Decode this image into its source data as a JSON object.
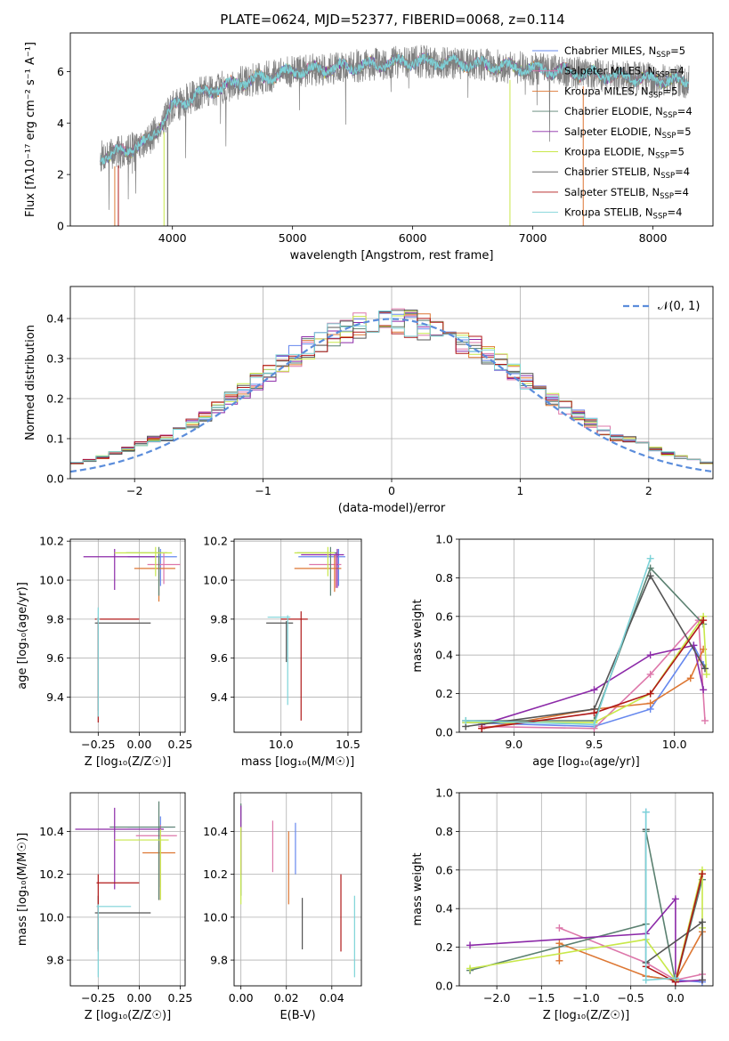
{
  "figure_title": "PLATE=0624, MJD=52377, FIBERID=0068, z=0.114",
  "colors": [
    "#6688ee",
    "#dd77aa",
    "#dd7733",
    "#5a8070",
    "#8c2aa8",
    "#c8e84a",
    "#555555",
    "#b01818",
    "#7dd3d8"
  ],
  "chart_data": [
    {
      "id": "spectrum",
      "type": "line",
      "title": "PLATE=0624, MJD=52377, FIBERID=0068, z=0.114",
      "xlabel": "wavelength [Angstrom, rest frame]",
      "ylabel": "Flux [fλ10⁻¹⁷ erg cm⁻² s⁻¹ A⁻¹]",
      "xlim": [
        3150,
        8500
      ],
      "ylim": [
        0,
        7.5
      ],
      "xticks": [
        4000,
        5000,
        6000,
        7000,
        8000
      ],
      "yticks": [
        0,
        2,
        4,
        6
      ],
      "data_x_range": [
        3400,
        8300
      ],
      "continuum": [
        [
          3400,
          2.7
        ],
        [
          3600,
          2.9
        ],
        [
          3800,
          3.3
        ],
        [
          4000,
          4.6
        ],
        [
          4200,
          5.1
        ],
        [
          4500,
          5.5
        ],
        [
          5000,
          6.0
        ],
        [
          5500,
          6.2
        ],
        [
          6000,
          6.4
        ],
        [
          6500,
          6.3
        ],
        [
          7000,
          6.1
        ],
        [
          7500,
          5.9
        ],
        [
          8000,
          5.7
        ],
        [
          8300,
          5.6
        ]
      ],
      "legend": [
        "Chabrier MILES, N_SSP=5",
        "Salpeter MILES, N_SSP=4",
        "Kroupa MILES, N_SSP=5",
        "Chabrier ELODIE, N_SSP=4",
        "Salpeter ELODIE, N_SSP=5",
        "Kroupa ELODIE, N_SSP=5",
        "Chabrier STELIB, N_SSP=4",
        "Salpeter STELIB, N_SSP=4",
        "Kroupa STELIB, N_SSP=4"
      ]
    },
    {
      "id": "residuals",
      "type": "line",
      "xlabel": "(data-model)/error",
      "ylabel": "Normed distribution",
      "xlim": [
        -2.5,
        2.5
      ],
      "ylim": [
        0,
        0.48
      ],
      "xticks": [
        -2,
        -1,
        0,
        1,
        2
      ],
      "yticks": [
        0.0,
        0.1,
        0.2,
        0.3,
        0.4
      ],
      "grid": true,
      "legend": [
        "𝒩(0, 1)"
      ],
      "bin_width": 0.1
    },
    {
      "id": "age_vs_Z",
      "type": "scatter",
      "xlabel": "Z [log₁₀(Z/Z☉)]",
      "ylabel": "age  [log₁₀(age/yr)]",
      "xlim": [
        -0.42,
        0.28
      ],
      "ylim": [
        9.22,
        10.21
      ],
      "xticks": [
        -0.25,
        0.0,
        0.25
      ],
      "yticks": [
        9.4,
        9.6,
        9.8,
        10.0,
        10.2
      ],
      "grid": true,
      "errorbars": [
        {
          "x": 0.13,
          "y": 10.12,
          "xerr": [
            0.2,
            0.1
          ],
          "yerr": [
            0.15,
            0.04
          ],
          "c": 0
        },
        {
          "x": 0.15,
          "y": 10.08,
          "xerr": [
            0.1,
            0.1
          ],
          "yerr": [
            0.1,
            0.06
          ],
          "c": 1
        },
        {
          "x": 0.12,
          "y": 10.06,
          "xerr": [
            0.15,
            0.1
          ],
          "yerr": [
            0.17,
            0.06
          ],
          "c": 2
        },
        {
          "x": 0.12,
          "y": 10.14,
          "xerr": [
            0.2,
            0.05
          ],
          "yerr": [
            0.22,
            0.03
          ],
          "c": 3
        },
        {
          "x": -0.15,
          "y": 10.12,
          "xerr": [
            0.19,
            0.26
          ],
          "yerr": [
            0.17,
            0.04
          ],
          "c": 4
        },
        {
          "x": 0.1,
          "y": 10.14,
          "xerr": [
            0.25,
            0.1
          ],
          "yerr": [
            0.12,
            0.03
          ],
          "c": 5
        },
        {
          "x": -0.25,
          "y": 9.78,
          "xerr": [
            0.02,
            0.32
          ],
          "yerr": [
            0.45,
            0.01
          ],
          "c": 6
        },
        {
          "x": -0.25,
          "y": 9.8,
          "xerr": [
            0.02,
            0.25
          ],
          "yerr": [
            0.53,
            0.01
          ],
          "c": 7
        },
        {
          "x": -0.25,
          "y": 9.8,
          "xerr": [
            0.01,
            0.01
          ],
          "yerr": [
            0.5,
            0.06
          ],
          "c": 8
        }
      ]
    },
    {
      "id": "age_vs_mass",
      "type": "scatter",
      "xlabel": "mass [log₁₀(M/M☉)]",
      "xlim": [
        9.65,
        10.6
      ],
      "ylim": [
        9.22,
        10.21
      ],
      "xticks": [
        10.0,
        10.5
      ],
      "yticks": [
        9.4,
        9.6,
        9.8,
        10.0,
        10.2
      ],
      "grid": true,
      "errorbars": [
        {
          "x": 10.43,
          "y": 10.12,
          "xerr": [
            0.3,
            0.05
          ],
          "yerr": [
            0.15,
            0.04
          ],
          "c": 0
        },
        {
          "x": 10.41,
          "y": 10.08,
          "xerr": [
            0.2,
            0.04
          ],
          "yerr": [
            0.12,
            0.06
          ],
          "c": 1
        },
        {
          "x": 10.4,
          "y": 10.06,
          "xerr": [
            0.3,
            0.05
          ],
          "yerr": [
            0.12,
            0.07
          ],
          "c": 2
        },
        {
          "x": 10.37,
          "y": 10.14,
          "xerr": [
            0.25,
            0.05
          ],
          "yerr": [
            0.22,
            0.03
          ],
          "c": 3
        },
        {
          "x": 10.42,
          "y": 10.13,
          "xerr": [
            0.27,
            0.05
          ],
          "yerr": [
            0.17,
            0.03
          ],
          "c": 4
        },
        {
          "x": 10.35,
          "y": 10.14,
          "xerr": [
            0.25,
            0.05
          ],
          "yerr": [
            0.12,
            0.03
          ],
          "c": 5
        },
        {
          "x": 10.04,
          "y": 9.78,
          "xerr": [
            0.15,
            0.05
          ],
          "yerr": [
            0.2,
            0.01
          ],
          "c": 6
        },
        {
          "x": 10.15,
          "y": 9.8,
          "xerr": [
            0.15,
            0.05
          ],
          "yerr": [
            0.52,
            0.04
          ],
          "c": 7
        },
        {
          "x": 10.05,
          "y": 9.81,
          "xerr": [
            0.15,
            0.02
          ],
          "yerr": [
            0.45,
            0.01
          ],
          "c": 8
        }
      ]
    },
    {
      "id": "weight_vs_age",
      "type": "line",
      "xlabel": "age  [log₁₀(age/yr)]",
      "ylabel": "mass weight",
      "xlim": [
        8.66,
        10.24
      ],
      "ylim": [
        0,
        1.0
      ],
      "xticks": [
        9.0,
        9.5,
        10.0
      ],
      "yticks": [
        0.0,
        0.2,
        0.4,
        0.6,
        0.8,
        1.0
      ],
      "grid": true,
      "series": [
        {
          "c": 0,
          "x": [
            8.7,
            9.5,
            9.85,
            10.12,
            10.18
          ],
          "y": [
            0.05,
            0.03,
            0.12,
            0.45,
            0.35
          ]
        },
        {
          "c": 1,
          "x": [
            8.8,
            9.5,
            9.85,
            10.15,
            10.19
          ],
          "y": [
            0.03,
            0.02,
            0.3,
            0.58,
            0.06
          ]
        },
        {
          "c": 2,
          "x": [
            8.8,
            9.5,
            9.85,
            10.1,
            10.18
          ],
          "y": [
            0.02,
            0.12,
            0.15,
            0.28,
            0.43
          ]
        },
        {
          "c": 3,
          "x": [
            8.7,
            9.5,
            9.85,
            10.18
          ],
          "y": [
            0.06,
            0.06,
            0.85,
            0.56
          ]
        },
        {
          "c": 4,
          "x": [
            8.8,
            9.5,
            9.85,
            10.12,
            10.18
          ],
          "y": [
            0.04,
            0.22,
            0.4,
            0.45,
            0.22
          ]
        },
        {
          "c": 5,
          "x": [
            8.7,
            9.5,
            9.85,
            10.18,
            10.2
          ],
          "y": [
            0.05,
            0.05,
            0.2,
            0.6,
            0.3
          ]
        },
        {
          "c": 6,
          "x": [
            8.7,
            9.5,
            9.85,
            10.19
          ],
          "y": [
            0.03,
            0.12,
            0.81,
            0.33
          ]
        },
        {
          "c": 7,
          "x": [
            8.8,
            9.5,
            9.85,
            10.18
          ],
          "y": [
            0.02,
            0.1,
            0.2,
            0.58
          ]
        },
        {
          "c": 8,
          "x": [
            8.7,
            9.5,
            9.85
          ],
          "y": [
            0.06,
            0.04,
            0.9
          ]
        }
      ]
    },
    {
      "id": "mass_vs_Z",
      "type": "scatter",
      "xlabel": "Z [log₁₀(Z/Z☉)]",
      "ylabel": "mass [log₁₀(M/M☉)]",
      "xlim": [
        -0.42,
        0.28
      ],
      "ylim": [
        9.68,
        10.58
      ],
      "xticks": [
        -0.25,
        0.0,
        0.25
      ],
      "yticks": [
        9.8,
        10.0,
        10.2,
        10.4
      ],
      "grid": true,
      "errorbars": [
        {
          "x": 0.13,
          "y": 10.42,
          "xerr": [
            0.2,
            0.08
          ],
          "yerr": [
            0.28,
            0.05
          ],
          "c": 0
        },
        {
          "x": 0.13,
          "y": 10.38,
          "xerr": [
            0.15,
            0.1
          ],
          "yerr": [
            0.3,
            0.05
          ],
          "c": 1
        },
        {
          "x": 0.12,
          "y": 10.3,
          "xerr": [
            0.1,
            0.1
          ],
          "yerr": [
            0.22,
            0.05
          ],
          "c": 2
        },
        {
          "x": 0.12,
          "y": 10.42,
          "xerr": [
            0.3,
            0.1
          ],
          "yerr": [
            0.34,
            0.12
          ],
          "c": 3
        },
        {
          "x": -0.15,
          "y": 10.41,
          "xerr": [
            0.24,
            0.3
          ],
          "yerr": [
            0.28,
            0.1
          ],
          "c": 4
        },
        {
          "x": 0.13,
          "y": 10.36,
          "xerr": [
            0.28,
            0.05
          ],
          "yerr": [
            0.28,
            0.05
          ],
          "c": 5
        },
        {
          "x": -0.25,
          "y": 10.02,
          "xerr": [
            0.02,
            0.32
          ],
          "yerr": [
            0.17,
            0.08
          ],
          "c": 6
        },
        {
          "x": -0.25,
          "y": 10.16,
          "xerr": [
            0.01,
            0.25
          ],
          "yerr": [
            0.32,
            0.04
          ],
          "c": 7
        },
        {
          "x": -0.25,
          "y": 10.05,
          "xerr": [
            0.01,
            0.2
          ],
          "yerr": [
            0.33,
            0.01
          ],
          "c": 8
        }
      ]
    },
    {
      "id": "mass_vs_ebv",
      "type": "scatter",
      "xlabel": "E(B-V)",
      "xlim": [
        -0.003,
        0.053
      ],
      "ylim": [
        9.68,
        10.58
      ],
      "xticks": [
        0.0,
        0.02,
        0.04
      ],
      "yticks": [
        9.8,
        10.0,
        10.2,
        10.4
      ],
      "grid": true,
      "errorbars": [
        {
          "x": 0.024,
          "y": 10.3,
          "xerr": [
            0,
            0
          ],
          "yerr": [
            0.1,
            0.14
          ],
          "c": 0
        },
        {
          "x": 0.014,
          "y": 10.3,
          "xerr": [
            0,
            0
          ],
          "yerr": [
            0.09,
            0.15
          ],
          "c": 1
        },
        {
          "x": 0.021,
          "y": 10.3,
          "xerr": [
            0,
            0
          ],
          "yerr": [
            0.24,
            0.1
          ],
          "c": 2
        },
        {
          "x": 0.0,
          "y": 10.3,
          "xerr": [
            0,
            0
          ],
          "yerr": [
            0.2,
            0.23
          ],
          "c": 3
        },
        {
          "x": 0.0,
          "y": 10.3,
          "xerr": [
            0,
            0
          ],
          "yerr": [
            0.1,
            0.22
          ],
          "c": 4
        },
        {
          "x": 0.0,
          "y": 10.3,
          "xerr": [
            0,
            0
          ],
          "yerr": [
            0.24,
            0.12
          ],
          "c": 5
        },
        {
          "x": 0.027,
          "y": 10.0,
          "xerr": [
            0,
            0
          ],
          "yerr": [
            0.15,
            0.09
          ],
          "c": 6
        },
        {
          "x": 0.044,
          "y": 10.0,
          "xerr": [
            0,
            0
          ],
          "yerr": [
            0.16,
            0.2
          ],
          "c": 7
        },
        {
          "x": 0.05,
          "y": 9.9,
          "xerr": [
            0,
            0
          ],
          "yerr": [
            0.18,
            0.2
          ],
          "c": 8
        }
      ]
    },
    {
      "id": "weight_vs_Z",
      "type": "line",
      "xlabel": "Z [log₁₀(Z/Z☉)]",
      "ylabel": "mass weight",
      "xlim": [
        -2.42,
        0.42
      ],
      "ylim": [
        0,
        1.0
      ],
      "xticks": [
        -2.0,
        -1.5,
        -1.0,
        -0.5,
        0.0
      ],
      "yticks": [
        0.0,
        0.2,
        0.4,
        0.6,
        0.8,
        1.0
      ],
      "grid": true,
      "series": [
        {
          "c": 0,
          "x": [
            -0.33,
            -0.33,
            0.0,
            0.3
          ],
          "y": [
            0.9,
            0.05,
            0.03,
            0.02
          ]
        },
        {
          "c": 1,
          "x": [
            -1.3,
            -0.33,
            0.0,
            0.3
          ],
          "y": [
            0.3,
            0.12,
            0.03,
            0.06
          ]
        },
        {
          "c": 2,
          "x": [
            -1.3,
            -1.3,
            -0.33,
            0.0,
            0.3
          ],
          "y": [
            0.13,
            0.22,
            0.05,
            0.03,
            0.28
          ]
        },
        {
          "c": 3,
          "x": [
            -2.3,
            -0.33,
            -0.33,
            0.0,
            0.3
          ],
          "y": [
            0.08,
            0.32,
            0.8,
            0.02,
            0.55
          ]
        },
        {
          "c": 4,
          "x": [
            -2.3,
            -0.33,
            0.0,
            0.0,
            0.3
          ],
          "y": [
            0.21,
            0.27,
            0.45,
            0.02,
            0.03
          ]
        },
        {
          "c": 5,
          "x": [
            -2.3,
            -0.33,
            0.0,
            0.3,
            0.3
          ],
          "y": [
            0.09,
            0.24,
            0.03,
            0.6,
            0.3
          ]
        },
        {
          "c": 6,
          "x": [
            -0.33,
            -0.33,
            0.3,
            0.3
          ],
          "y": [
            0.81,
            0.12,
            0.33,
            0.03
          ]
        },
        {
          "c": 7,
          "x": [
            -0.33,
            0.0,
            0.3
          ],
          "y": [
            0.1,
            0.02,
            0.58
          ]
        },
        {
          "c": 8,
          "x": [
            -0.33,
            -0.33,
            0.0
          ],
          "y": [
            0.9,
            0.03,
            0.04
          ]
        }
      ]
    }
  ]
}
